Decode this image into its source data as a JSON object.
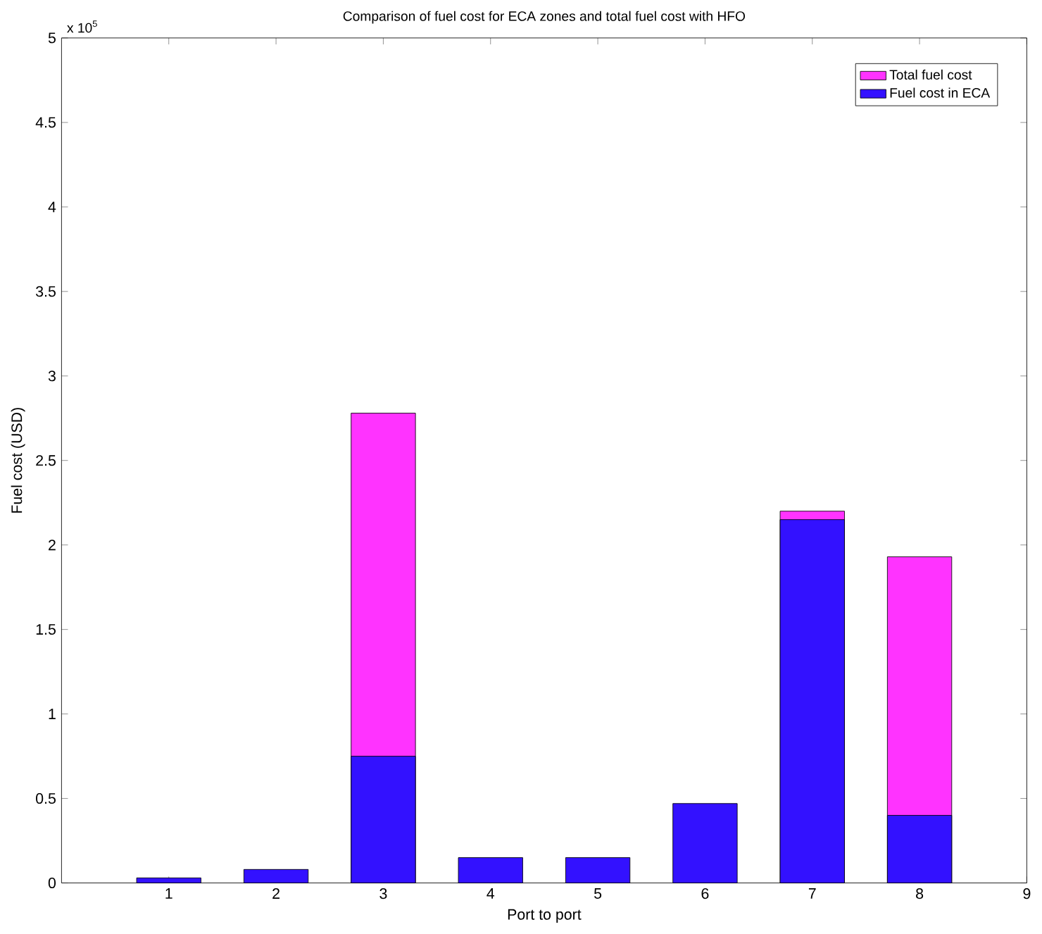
{
  "chart_data": {
    "type": "bar",
    "title": "Comparison of fuel cost for ECA zones and total fuel cost with HFO",
    "xlabel": "Port to port",
    "ylabel": "Fuel cost (USD)",
    "annotations": [
      "x 10$^{5}$"
    ],
    "x": [
      1,
      2,
      3,
      4,
      5,
      6,
      7,
      8
    ],
    "series": [
      {
        "name": "Total fuel cost",
        "color": "#ff33ff",
        "values": [
          null,
          null,
          2.78,
          null,
          null,
          null,
          2.2,
          1.93
        ]
      },
      {
        "name": "Fuel cost in ECA",
        "color": "#3311ff",
        "values": [
          0.03,
          0.08,
          0.75,
          0.15,
          0.15,
          0.47,
          2.15,
          0.4
        ]
      }
    ],
    "xlim": [
      0,
      9
    ],
    "xticks": [
      1,
      2,
      3,
      4,
      5,
      6,
      7,
      8,
      9
    ],
    "ylim": [
      0,
      5
    ],
    "yticks": [
      0,
      0.5,
      1,
      1.5,
      2,
      2.5,
      3,
      3.5,
      4,
      4.5,
      5
    ],
    "grid": false,
    "legend": "top right"
  }
}
